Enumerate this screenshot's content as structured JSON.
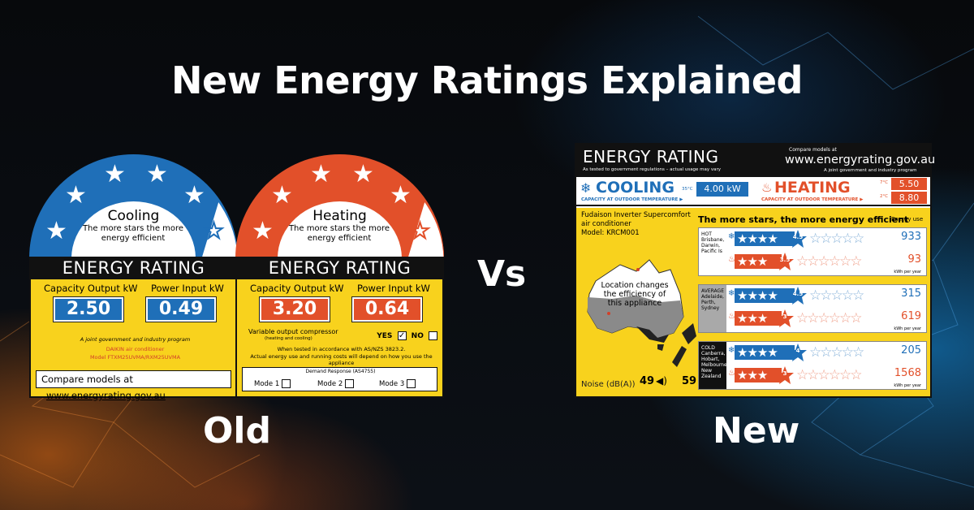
{
  "title": "New Energy Ratings Explained",
  "captions": {
    "old": "Old",
    "vs": "Vs",
    "new": "New"
  },
  "colors": {
    "cooling_blue": "#1f6fb8",
    "heating_red": "#e2502a",
    "label_yellow": "#f8d21d"
  },
  "old_cooling_label": {
    "title": "Cooling",
    "subtitle": "The more stars the more energy efficient",
    "stars_filled": 6,
    "stars_total": 7,
    "banner": "ENERGY RATING",
    "capacity_label": "Capacity Output kW",
    "power_label": "Power Input kW",
    "capacity_value": "2.50",
    "power_value": "0.49",
    "program_note": "A joint government and industry program",
    "brand_line": "DAIKIN air conditioner",
    "model_line": "Model FTXM25UVMA/RXM25UVMA",
    "compare_text": "Compare models at",
    "compare_url": "www.energyrating.gov.au"
  },
  "old_heating_label": {
    "title": "Heating",
    "subtitle": "The more stars the more energy efficient",
    "stars_filled": 6,
    "stars_total": 7,
    "banner": "ENERGY RATING",
    "capacity_label": "Capacity Output kW",
    "power_label": "Power Input kW",
    "capacity_value": "3.20",
    "power_value": "0.64",
    "compressor_line": "Variable output compressor",
    "compressor_sub": "(heating and cooling)",
    "yes_label": "YES",
    "no_label": "NO",
    "tested_line_1": "When tested in accordance with AS/NZS 3823.2.",
    "tested_line_2": "Actual energy use and running costs will depend on how you use the appliance",
    "demand_title": "Demand Response (AS4755)",
    "modes": [
      "Mode 1",
      "Mode 2",
      "Mode 3"
    ]
  },
  "new_label": {
    "header": "ENERGY RATING",
    "header_sub": "As tested to government regulations – actual usage may vary",
    "compare_prefix": "Compare models at",
    "compare_url": "www.energyrating.gov.au",
    "joint_note": "A joint government and industry program",
    "cooling_title": "COOLING",
    "cooling_sub": "CAPACITY AT OUTDOOR TEMPERATURE ▶",
    "cooling_temp": "35°C",
    "cooling_kw": "4.00 kW",
    "heating_title": "HEATING",
    "heating_sub": "CAPACITY AT OUTDOOR TEMPERATURE ▶",
    "heating_temp_1": "7°C",
    "heating_kw_1": "5.50 kW",
    "heating_temp_2": "2°C",
    "heating_kw_2": "8.80 kW",
    "model_line_1": "Fudaison Inverter Supercomfort",
    "model_line_2": "air conditioner",
    "model_line_3": "Model: KRCM001",
    "map_note": "Location changes the efficiency of this appliance",
    "more_stars": "The more stars, the more energy efficient",
    "energy_use_label": "Energy use",
    "kwh_unit": "kWh per year",
    "noise_label": "Noise (dB(A))",
    "noise_indoor": "49",
    "noise_outdoor": "59",
    "zones": [
      {
        "name": "HOT",
        "places": "Brisbane, Darwin, Pacific Is",
        "cool_stars": 4.5,
        "cool_kwh": "933",
        "heat_stars": 3.5,
        "heat_kwh": "93"
      },
      {
        "name": "AVERAGE",
        "places": "Adelaide, Perth, Sydney",
        "cool_stars": 4.5,
        "cool_kwh": "315",
        "heat_stars": 3,
        "heat_kwh": "619"
      },
      {
        "name": "COLD",
        "places": "Canberra, Hobart, Melbourne, New Zealand",
        "cool_stars": 4,
        "cool_kwh": "205",
        "heat_stars": 3,
        "heat_kwh": "1568"
      }
    ]
  }
}
